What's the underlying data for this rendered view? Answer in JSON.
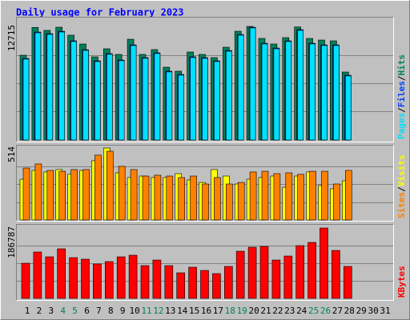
{
  "chart_data": {
    "type": "bar",
    "title": "Daily usage for February 2023",
    "legend_separator": "/",
    "categories": [
      "1",
      "2",
      "3",
      "4",
      "5",
      "6",
      "7",
      "8",
      "9",
      "10",
      "11",
      "12",
      "13",
      "14",
      "15",
      "16",
      "17",
      "18",
      "19",
      "20",
      "21",
      "22",
      "23",
      "24",
      "25",
      "26",
      "27",
      "28",
      "29",
      "30",
      "31"
    ],
    "category_colors": [
      "#000000",
      "#000000",
      "#000000",
      "#00805c",
      "#00805c",
      "#000000",
      "#000000",
      "#000000",
      "#000000",
      "#000000",
      "#00805c",
      "#00805c",
      "#000000",
      "#000000",
      "#000000",
      "#000000",
      "#000000",
      "#00805c",
      "#00805c",
      "#000000",
      "#000000",
      "#000000",
      "#000000",
      "#000000",
      "#00805c",
      "#00805c",
      "#000000",
      "#000000",
      "#000000",
      "#000000",
      "#000000"
    ],
    "panels": [
      {
        "ylim": [
          0,
          12715
        ],
        "yticks": [
          12715
        ],
        "gridlines": [
          3179,
          6358,
          9536
        ],
        "series": [
          {
            "name": "Hits",
            "color": "#00805c",
            "values": [
              9490,
              12600,
              12270,
              12625,
              11730,
              10745,
              9310,
              10210,
              9580,
              11280,
              9580,
              10120,
              8150,
              7700,
              9850,
              9580,
              9220,
              10385,
              12175,
              12715,
              11370,
              10745,
              11460,
              12650,
              11370,
              11190,
              11100,
              7610,
              null,
              null,
              null
            ]
          },
          {
            "name": "Files",
            "color": "#0040ff",
            "values": [
              9130,
              12080,
              11900,
              12170,
              11100,
              10110,
              8860,
              9670,
              8950,
              10650,
              9220,
              9760,
              7700,
              7340,
              9310,
              9220,
              8860,
              10020,
              11810,
              12620,
              10830,
              10290,
              11100,
              12350,
              10830,
              10650,
              10650,
              7250,
              null,
              null,
              null
            ]
          },
          {
            "name": "Pages",
            "color": "#00e0ff",
            "values": [
              9050,
              12000,
              11820,
              12090,
              11020,
              10030,
              8780,
              9590,
              8870,
              10570,
              9140,
              9680,
              7620,
              7260,
              9230,
              9140,
              8780,
              9940,
              11730,
              12540,
              10750,
              10210,
              11020,
              12270,
              10750,
              10570,
              10570,
              7170,
              null,
              null,
              null
            ]
          }
        ]
      },
      {
        "ylim": [
          0,
          514
        ],
        "yticks": [
          514
        ],
        "gridlines": [
          128.5,
          257,
          385.5
        ],
        "series": [
          {
            "name": "Visits",
            "color": "#ffff00",
            "values": [
              291,
              354,
              343,
              360,
              326,
              354,
              423,
              514,
              337,
              303,
              314,
              303,
              303,
              331,
              286,
              268,
              360,
              314,
              257,
              291,
              303,
              314,
              234,
              314,
              343,
              246,
              223,
              280,
              null,
              null,
              null
            ]
          },
          {
            "name": "Sites",
            "color": "#ff8000",
            "values": [
              371,
              400,
              354,
              348,
              360,
              360,
              463,
              491,
              383,
              360,
              314,
              320,
              314,
              303,
              314,
              257,
              303,
              257,
              268,
              343,
              348,
              331,
              337,
              326,
              348,
              348,
              257,
              354,
              null,
              null,
              null
            ]
          }
        ]
      },
      {
        "ylim": [
          0,
          186787
        ],
        "yticks": [
          186787
        ],
        "gridlines": [
          46697,
          93394,
          140090
        ],
        "series": [
          {
            "name": "KBytes",
            "color": "#ff0000",
            "values": [
              93370,
              123080,
              110340,
              131560,
              108220,
              103980,
              91250,
              97610,
              110340,
              114590,
              87000,
              101860,
              87000,
              67900,
              82760,
              74270,
              65780,
              84880,
              125200,
              135810,
              137930,
              101860,
              112470,
              140050,
              148540,
              186787,
              127320,
              84880,
              null,
              null,
              null
            ]
          }
        ]
      }
    ]
  }
}
